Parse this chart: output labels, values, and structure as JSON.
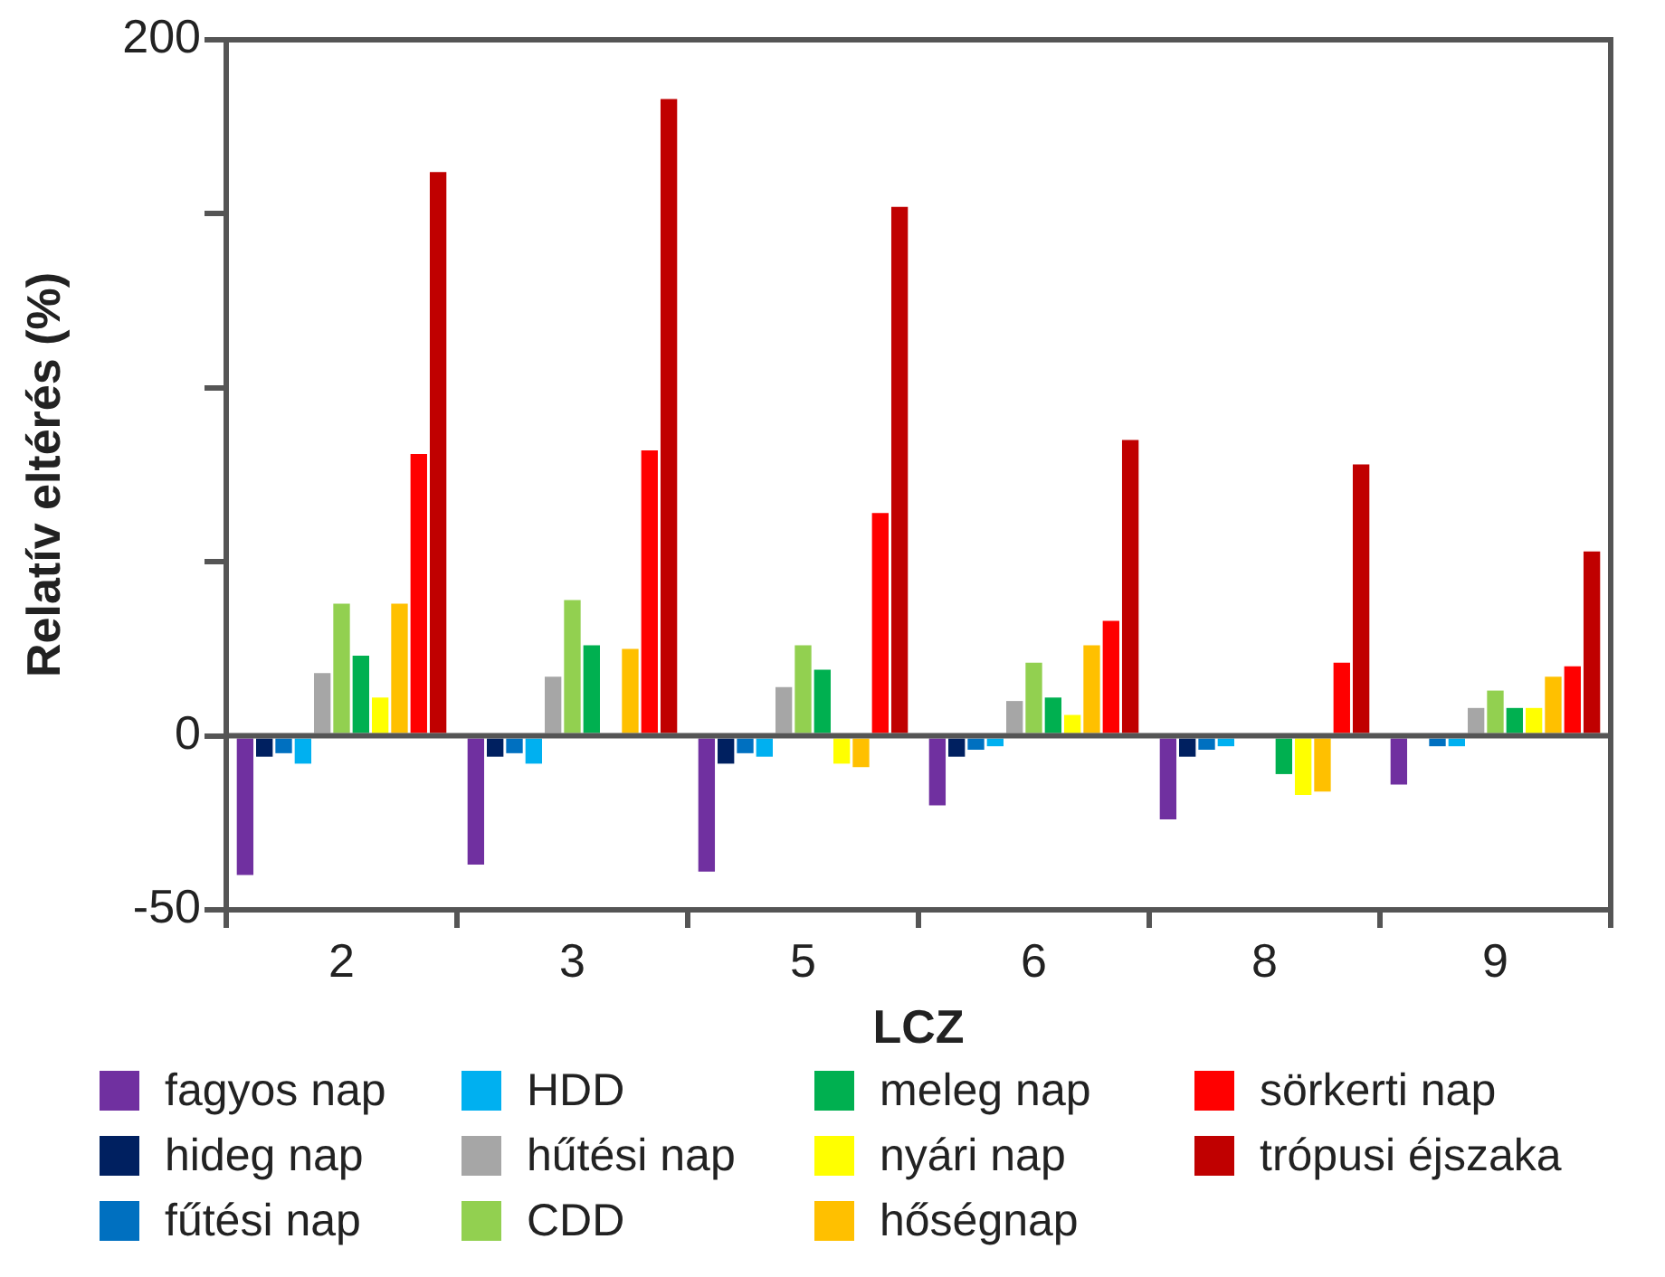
{
  "chart_data": {
    "type": "bar",
    "xlabel": "LCZ",
    "ylabel": "Relatív eltérés (%)",
    "categories": [
      "2",
      "3",
      "5",
      "6",
      "8",
      "9"
    ],
    "ylim": [
      -50,
      200
    ],
    "yticks": [
      -50,
      0,
      {
        "value": 50,
        "label": null
      },
      {
        "value": 100,
        "label": null
      },
      {
        "value": 150,
        "label": null
      },
      200
    ],
    "grid": false,
    "legend": "bottom",
    "ref_lines": [
      {
        "axis": "y",
        "value": 0,
        "color": "#555555"
      }
    ],
    "series": [
      {
        "name": "fagyos nap",
        "color": "#7030a0",
        "values": [
          -40,
          -37,
          -39,
          -20,
          -24,
          -14
        ]
      },
      {
        "name": "hideg nap",
        "color": "#002060",
        "values": [
          -6,
          -6,
          -8,
          -6,
          -6,
          null
        ]
      },
      {
        "name": "fűtési nap",
        "color": "#0070c0",
        "values": [
          -5,
          -5,
          -5,
          -4,
          -4,
          -3
        ]
      },
      {
        "name": "HDD",
        "color": "#00b0f0",
        "values": [
          -8,
          -8,
          -6,
          -3,
          -3,
          -3
        ]
      },
      {
        "name": "hűtési nap",
        "color": "#a6a6a6",
        "values": [
          18,
          17,
          14,
          10,
          null,
          8
        ]
      },
      {
        "name": "CDD",
        "color": "#92d050",
        "values": [
          38,
          39,
          26,
          21,
          null,
          13
        ]
      },
      {
        "name": "meleg nap",
        "color": "#00b050",
        "values": [
          23,
          26,
          19,
          11,
          -11,
          8
        ]
      },
      {
        "name": "nyári nap",
        "color": "#ffff00",
        "values": [
          11,
          null,
          -8,
          6,
          -17,
          8
        ]
      },
      {
        "name": "hőségnap",
        "color": "#ffc000",
        "values": [
          38,
          25,
          -9,
          26,
          -16,
          17
        ]
      },
      {
        "name": "sörkerti nap",
        "color": "#ff0000",
        "values": [
          81,
          82,
          64,
          33,
          21,
          20
        ]
      },
      {
        "name": "trópusi éjszaka",
        "color": "#c00000",
        "values": [
          162,
          183,
          152,
          85,
          78,
          53
        ]
      }
    ]
  }
}
